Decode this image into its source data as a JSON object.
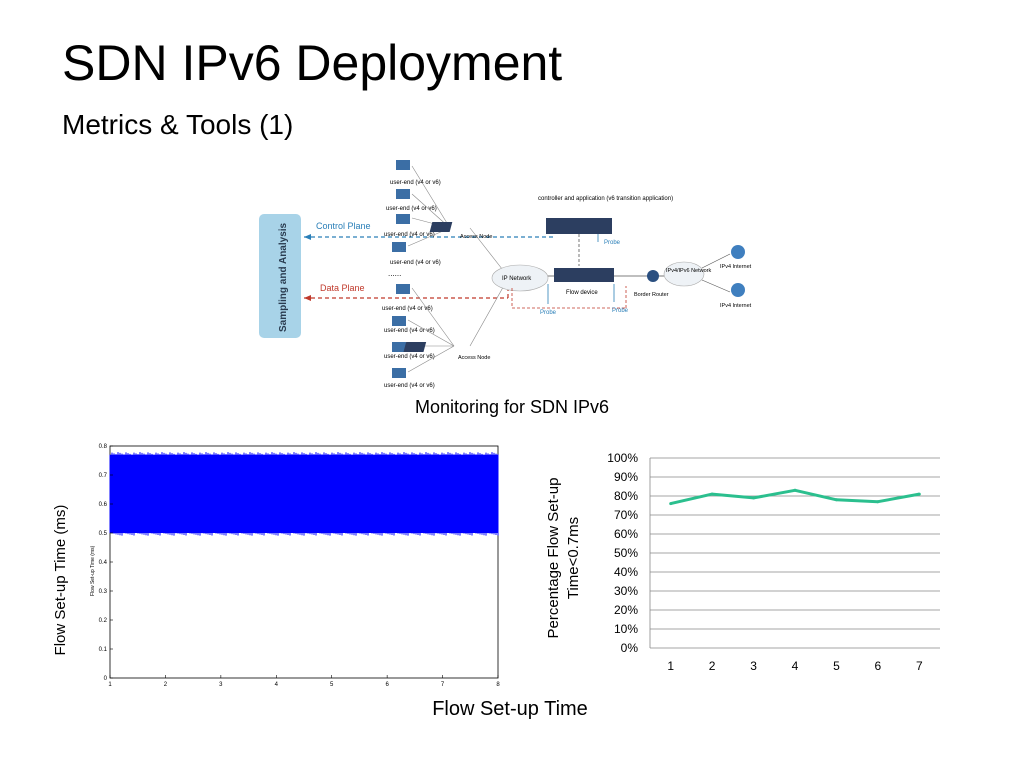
{
  "slide": {
    "title": "SDN IPv6 Deployment",
    "subtitle": "Metrics & Tools (1)",
    "diagram_caption": "Monitoring for SDN IPv6",
    "bottom_caption": "Flow Set-up Time"
  },
  "diagram": {
    "sampling_label": "Sampling and Analysis",
    "control_plane": "Control Plane",
    "data_plane": "Data Plane",
    "user_ends_top": [
      "user-end (v4 or v6)",
      "user-end (v4 or v6)",
      "user-end (v4 or v6)",
      "user-end (v4 or v6)"
    ],
    "user_ends_bottom": [
      "user-end (v4 or v6)",
      "user-end (v4 or v6)",
      "user-end (v4 or v6)",
      "user-end (v4 or v6)"
    ],
    "access_node_top": "Access Node",
    "access_node_bottom": "Access Node",
    "controller": "controller and application (v6 transition application)",
    "probe_controller": "Probe",
    "ip_network": "IP Network",
    "flow_device": "Flow device",
    "border_router": "Border Router",
    "ipv4_ipv6_network": "IPv4/IPv6 Network",
    "ipv4_internet_1": "IPv4 Internet",
    "ipv4_internet_2": "IPv4 Internet",
    "probe_left": "Probe",
    "probe_right": "Probe",
    "colors": {
      "sampling_bg": "#a8d3e8",
      "control": "#2a7fb8",
      "data": "#c0392b",
      "device": "#2c3e60"
    }
  },
  "chart_data": [
    {
      "type": "line",
      "ylabel": "Flow Set-up Time (ms)",
      "inner_ylabel": "Flow Set-up Time (ms)",
      "x_ticks": [
        "1",
        "2",
        "3",
        "4",
        "5",
        "6",
        "7",
        "8"
      ],
      "y_ticks": [
        "0",
        "0.1",
        "0.2",
        "0.3",
        "0.4",
        "0.5",
        "0.6",
        "0.7",
        "0.8"
      ],
      "xlim": [
        1,
        8
      ],
      "ylim": [
        0,
        0.8
      ],
      "band": {
        "low": 0.5,
        "high": 0.77
      },
      "color": "#0000ff"
    },
    {
      "type": "line",
      "ylabel": "Percentage Flow Set-up Time<0.7ms",
      "categories": [
        "1",
        "2",
        "3",
        "4",
        "5",
        "6",
        "7"
      ],
      "values": [
        76,
        81,
        79,
        83,
        78,
        77,
        81
      ],
      "y_ticks": [
        "0%",
        "10%",
        "20%",
        "30%",
        "40%",
        "50%",
        "60%",
        "70%",
        "80%",
        "90%",
        "100%"
      ],
      "ylim": [
        0,
        100
      ],
      "color": "#2bbf8e"
    }
  ]
}
